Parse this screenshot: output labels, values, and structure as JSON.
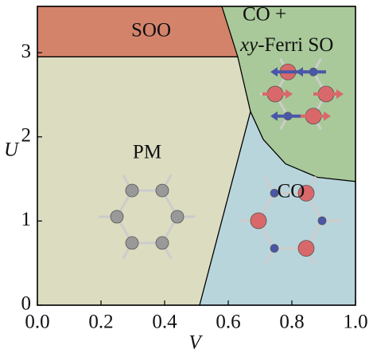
{
  "chart_data": {
    "type": "region",
    "xlabel": "V",
    "ylabel": "U",
    "xlim": [
      0,
      1.0
    ],
    "ylim": [
      0,
      3.55
    ],
    "xticks": [
      {
        "value": 0,
        "label": "0.0"
      },
      {
        "value": 0.2,
        "label": "0.2"
      },
      {
        "value": 0.4,
        "label": "0.4"
      },
      {
        "value": 0.6,
        "label": "0.6"
      },
      {
        "value": 0.8,
        "label": "0.8"
      },
      {
        "value": 1.0,
        "label": "1.0"
      }
    ],
    "yticks": [
      0,
      1,
      2,
      3
    ],
    "regions": [
      {
        "name": "SOO",
        "color": "#d4836b",
        "x": [
          0,
          0.58,
          0.63,
          0
        ],
        "y": [
          3.55,
          3.55,
          2.95,
          2.95
        ]
      },
      {
        "name": "PM",
        "color": "#dcdcc1",
        "x": [
          0,
          0.51,
          0.67,
          0.63,
          0
        ],
        "y": [
          0,
          0,
          2.3,
          2.95,
          2.95
        ]
      },
      {
        "name": "CO",
        "color": "#b9d5dc",
        "x": [
          0.51,
          1.0,
          1.0,
          0.88,
          0.78,
          0.71,
          0.67
        ],
        "y": [
          0,
          0,
          1.47,
          1.52,
          1.68,
          1.97,
          2.3
        ]
      },
      {
        "name": [
          "CO +",
          "xy",
          "-Ferri SO"
        ],
        "color": "#a9c99a",
        "x": [
          0.58,
          1.0,
          1.0,
          0.88,
          0.78,
          0.71,
          0.67,
          0.63
        ],
        "y": [
          3.55,
          3.55,
          1.47,
          1.52,
          1.68,
          1.97,
          2.3,
          2.95
        ]
      }
    ]
  }
}
